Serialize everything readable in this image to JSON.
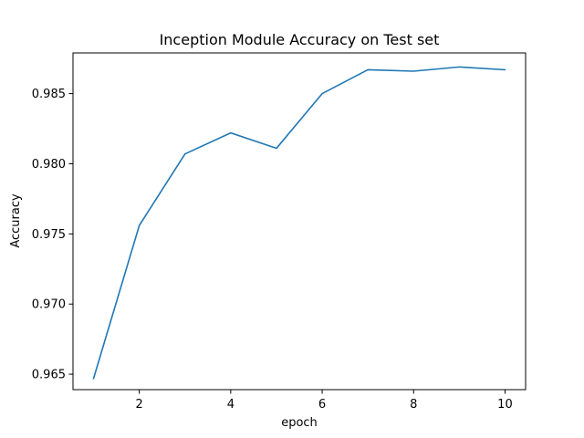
{
  "chart_data": {
    "type": "line",
    "title": "Inception Module Accuracy on Test set",
    "xlabel": "epoch",
    "ylabel": "Accuracy",
    "xlim": [
      0.55,
      10.45
    ],
    "ylim": [
      0.9639,
      0.9879
    ],
    "xticks": [
      2,
      4,
      6,
      8,
      10
    ],
    "yticks": [
      0.965,
      0.97,
      0.975,
      0.98,
      0.985
    ],
    "ytick_labels": [
      "0.965",
      "0.970",
      "0.975",
      "0.980",
      "0.985"
    ],
    "grid": false,
    "series": [
      {
        "color": "#1f77b4",
        "x": [
          1,
          2,
          3,
          4,
          5,
          6,
          7,
          8,
          9,
          10
        ],
        "y": [
          0.9647,
          0.9756,
          0.9807,
          0.9822,
          0.9811,
          0.985,
          0.9867,
          0.9866,
          0.9869,
          0.9867
        ]
      }
    ]
  }
}
